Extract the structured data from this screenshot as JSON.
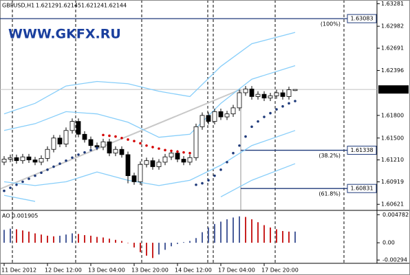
{
  "chart_data": [
    {
      "type": "candlestick",
      "title": "GBPUSD,H1",
      "watermark": "WWW.GKFX.RU",
      "categories": [
        "11 Dec 2012",
        null,
        null,
        null,
        null,
        null,
        null,
        "12 Dec 12:00",
        null,
        null,
        null,
        null,
        null,
        null,
        "13 Dec 04:00",
        null,
        null,
        null,
        null,
        null,
        null,
        "13 Dec 20:00",
        null,
        null,
        null,
        null,
        null,
        null,
        "14 Dec 12:00",
        null,
        null,
        null,
        null,
        null,
        null,
        "17 Dec 04:00",
        null,
        null,
        null,
        null,
        null,
        null,
        "17 Dec 20:00",
        null,
        null,
        null,
        null,
        null
      ],
      "open": [
        1.6118,
        1.6122,
        1.6124,
        1.612,
        1.6125,
        1.6121,
        1.6118,
        1.6123,
        1.6135,
        1.615,
        1.6142,
        1.616,
        1.6172,
        1.6155,
        1.6148,
        1.614,
        1.6138,
        1.6145,
        1.613,
        1.6135,
        1.6128,
        1.61,
        1.6092,
        1.6115,
        1.612,
        1.6112,
        1.6118,
        1.6125,
        1.613,
        1.6122,
        1.6118,
        1.6124,
        1.6165,
        1.618,
        1.6172,
        1.6185,
        1.6178,
        1.6182,
        1.619,
        1.621,
        1.6215,
        1.6205,
        1.6208,
        1.6203,
        1.6206,
        1.621,
        1.6205,
        1.62129
      ],
      "high": [
        1.6126,
        1.6128,
        1.6128,
        1.6129,
        1.6129,
        1.6125,
        1.6127,
        1.6139,
        1.6154,
        1.6154,
        1.6164,
        1.6176,
        1.6176,
        1.6159,
        1.6152,
        1.6144,
        1.6149,
        1.6149,
        1.6139,
        1.6139,
        1.6132,
        1.6104,
        1.6119,
        1.6124,
        1.6124,
        1.6122,
        1.6129,
        1.6134,
        1.6134,
        1.6126,
        1.6128,
        1.6169,
        1.6184,
        1.6184,
        1.6189,
        1.6189,
        1.6186,
        1.6194,
        1.6214,
        1.6219,
        1.6219,
        1.6212,
        1.6212,
        1.621,
        1.6214,
        1.6214,
        1.6218,
        1.62145
      ],
      "low": [
        1.6114,
        1.6118,
        1.6116,
        1.6116,
        1.6117,
        1.6114,
        1.6114,
        1.6119,
        1.6131,
        1.6138,
        1.6138,
        1.6156,
        1.6151,
        1.6144,
        1.6136,
        1.6134,
        1.6134,
        1.6126,
        1.6126,
        1.6124,
        1.609,
        1.6088,
        1.6088,
        1.6111,
        1.6108,
        1.6108,
        1.6114,
        1.6121,
        1.6118,
        1.6114,
        1.6114,
        1.612,
        1.6161,
        1.6168,
        1.6168,
        1.6174,
        1.6174,
        1.6178,
        1.6186,
        1.6206,
        1.6201,
        1.6201,
        1.6199,
        1.6199,
        1.6202,
        1.6201,
        1.6201,
        1.62124
      ],
      "close": [
        1.6122,
        1.6124,
        1.612,
        1.6125,
        1.6121,
        1.6118,
        1.6123,
        1.6135,
        1.615,
        1.6142,
        1.616,
        1.6172,
        1.6155,
        1.6148,
        1.614,
        1.6138,
        1.6145,
        1.613,
        1.6135,
        1.6128,
        1.61,
        1.6092,
        1.6115,
        1.612,
        1.6112,
        1.6118,
        1.6125,
        1.613,
        1.6122,
        1.6118,
        1.6124,
        1.6165,
        1.618,
        1.6172,
        1.6185,
        1.6178,
        1.6182,
        1.619,
        1.621,
        1.6215,
        1.6205,
        1.6208,
        1.6203,
        1.6206,
        1.621,
        1.6205,
        1.6214,
        1.62144
      ],
      "up_color": "#ffffff",
      "down_color": "#000000",
      "bands": {
        "x": [
          0,
          5,
          10,
          15,
          20,
          25,
          30,
          35,
          40,
          47
        ],
        "color": "#87cefa",
        "series": [
          {
            "values": [
              1.6182,
              1.6196,
              1.6219,
              1.6225,
              1.6222,
              1.6212,
              1.6205,
              1.6245,
              1.6275,
              1.629
            ]
          },
          {
            "values": [
              1.616,
              1.6169,
              1.6185,
              1.6182,
              1.6171,
              1.6151,
              1.6155,
              1.6196,
              1.6228,
              1.6246
            ]
          },
          {
            "values": [
              1.6092,
              1.6087,
              1.6092,
              1.6105,
              1.6094,
              1.6087,
              1.6094,
              1.6114,
              1.614,
              1.616
            ]
          },
          {
            "values": [
              1.6074,
              1.6066,
              null,
              null,
              null,
              null,
              null,
              1.6072,
              1.6094,
              1.6116
            ]
          }
        ]
      },
      "sar": {
        "color_below": "#1f3a7a",
        "color_above": "#d40000",
        "values": [
          1.608,
          1.6084,
          1.6088,
          1.6092,
          1.6096,
          1.61,
          1.6104,
          1.6108,
          1.6112,
          1.6116,
          1.612,
          1.6124,
          1.6128,
          1.6131,
          1.6134,
          1.6137,
          1.6154,
          1.6153,
          1.6152,
          1.615,
          1.6148,
          1.6146,
          1.6143,
          1.614,
          1.6138,
          1.6136,
          1.6134,
          1.6133,
          1.6132,
          1.6131,
          1.613,
          1.6088,
          1.609,
          1.6094,
          1.61,
          1.6108,
          1.6118,
          1.613,
          1.614,
          1.6152,
          1.6165,
          1.6172,
          1.6178,
          1.6183,
          1.6188,
          1.6192,
          1.6196,
          1.6199
        ]
      },
      "fib_levels": [
        {
          "value": 1.63083,
          "label": "(100%)"
        },
        {
          "value": 1.61338,
          "label": "(38.2%)"
        },
        {
          "value": 1.60831,
          "label": "(61.8%)"
        }
      ],
      "ylim": [
        1.6055,
        1.6333
      ],
      "yticks": [
        1.63281,
        1.62982,
        1.62691,
        1.62396,
        {
          "value": 1.618,
          "label": "1.61800"
        },
        {
          "value": 1.615,
          "label": "1.61500"
        },
        {
          "value": 1.6121,
          "label": "1.61210"
        },
        1.60919,
        1.60621
      ]
    },
    {
      "type": "bar",
      "title": "AO 0.001905",
      "values": [
        0.0022,
        0.0024,
        0.0023,
        0.0021,
        0.0019,
        0.0016,
        0.0014,
        0.0012,
        0.0011,
        0.0012,
        0.0014,
        0.0016,
        0.0015,
        0.0013,
        0.0012,
        0.001,
        0.0009,
        0.0007,
        0.0005,
        0.0003,
        0.0,
        -0.0008,
        -0.0016,
        -0.0022,
        -0.0026,
        -0.002,
        -0.0012,
        -0.0006,
        -0.0002,
        0.0001,
        0.0003,
        0.0008,
        0.0018,
        0.0026,
        0.0032,
        0.0036,
        0.004,
        0.0043,
        0.0045,
        0.0044,
        0.004,
        0.0035,
        0.003,
        0.0026,
        0.0023,
        0.002,
        0.0019,
        0.001905
      ],
      "up_color": "#4a5d9a",
      "down_color": "#c82020",
      "ylim": [
        -0.0035,
        0.0054
      ],
      "yticks": [
        0.004782,
        {
          "value": 0,
          "label": "0.00"
        },
        -0.00294
      ]
    }
  ]
}
